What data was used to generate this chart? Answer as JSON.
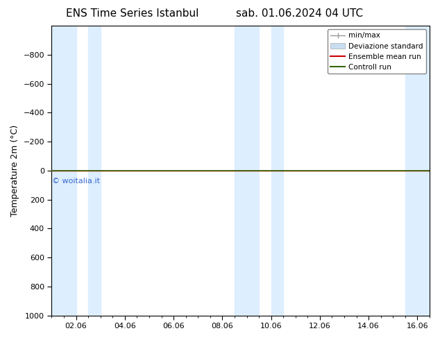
{
  "title_left": "ENS Time Series Istanbul",
  "title_right": "sab. 01.06.2024 04 UTC",
  "ylabel": "Temperature 2m (°C)",
  "ylim_bottom": 1000,
  "ylim_top": -1000,
  "yticks": [
    -800,
    -600,
    -400,
    -200,
    0,
    200,
    400,
    600,
    800,
    1000
  ],
  "xlim": [
    0,
    15.5
  ],
  "xtick_labels": [
    "02.06",
    "04.06",
    "06.06",
    "08.06",
    "10.06",
    "12.06",
    "14.06",
    "16.06"
  ],
  "xtick_positions": [
    1,
    3,
    5,
    7,
    9,
    11,
    13,
    15
  ],
  "blue_bands": [
    [
      0,
      1.0
    ],
    [
      1.5,
      2.0
    ],
    [
      7.5,
      8.5
    ],
    [
      9.0,
      9.5
    ],
    [
      14.5,
      15.5
    ]
  ],
  "band_color": "#ddeeff",
  "control_run_color": "#336600",
  "ensemble_mean_color": "#cc0000",
  "std_color": "#c8ddf0",
  "min_max_color": "#b8cce0",
  "watermark_text": "© woitalia.it",
  "watermark_color": "#3366cc",
  "background_color": "#ffffff",
  "title_fontsize": 11,
  "label_fontsize": 9,
  "tick_fontsize": 8,
  "legend_fontsize": 7.5
}
